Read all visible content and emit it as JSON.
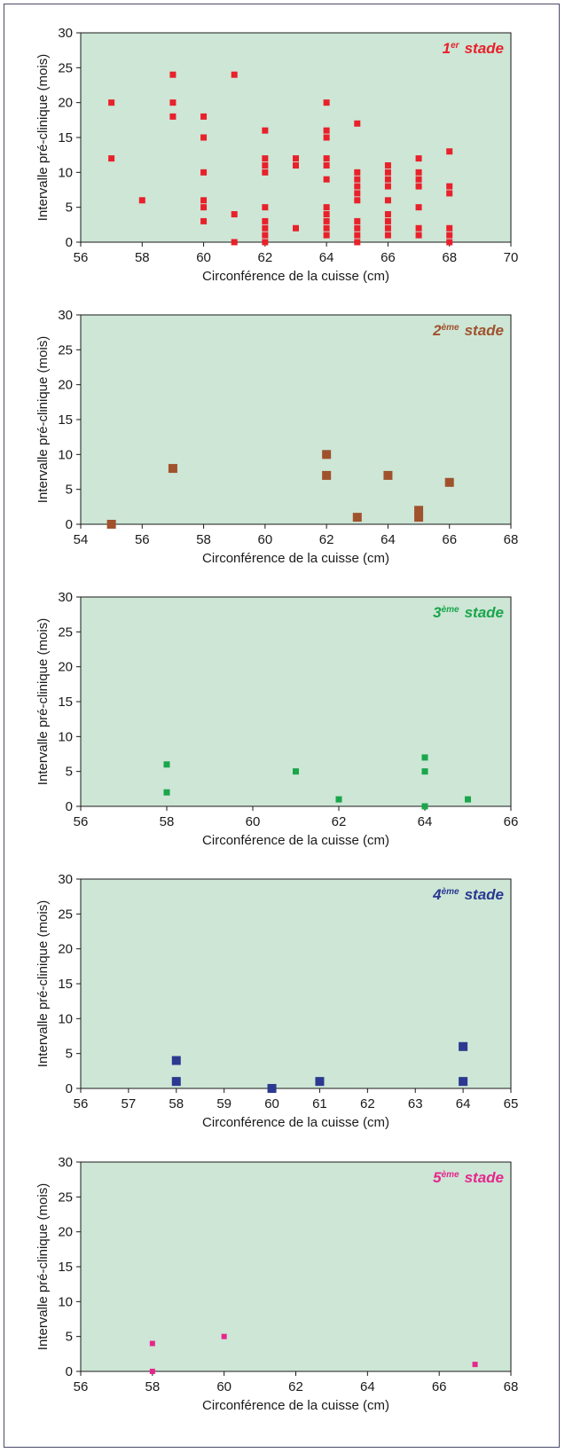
{
  "chart_data": [
    {
      "type": "scatter",
      "stage_sup": "er",
      "stage_word": "stade",
      "stage_num": "1",
      "stage_color": "#e8212b",
      "xlabel": "Circonférence de la cuisse (cm)",
      "ylabel": "Intervalle pré-clinique (mois)",
      "xlim": [
        56,
        70
      ],
      "xticks": [
        56,
        58,
        60,
        62,
        64,
        66,
        68,
        70
      ],
      "ylim": [
        0,
        30
      ],
      "yticks": [
        0,
        5,
        10,
        15,
        20,
        25,
        30
      ],
      "marker": "small",
      "points": [
        [
          57,
          20
        ],
        [
          57,
          12
        ],
        [
          58,
          6
        ],
        [
          59,
          24
        ],
        [
          59,
          20
        ],
        [
          59,
          18
        ],
        [
          60,
          18
        ],
        [
          60,
          15
        ],
        [
          60,
          10
        ],
        [
          60,
          6
        ],
        [
          60,
          5
        ],
        [
          60,
          3
        ],
        [
          61,
          24
        ],
        [
          61,
          4
        ],
        [
          61,
          0
        ],
        [
          62,
          16
        ],
        [
          62,
          12
        ],
        [
          62,
          11
        ],
        [
          62,
          10
        ],
        [
          62,
          5
        ],
        [
          62,
          3
        ],
        [
          62,
          2
        ],
        [
          62,
          1
        ],
        [
          62,
          0
        ],
        [
          63,
          12
        ],
        [
          63,
          11
        ],
        [
          63,
          2
        ],
        [
          64,
          20
        ],
        [
          64,
          16
        ],
        [
          64,
          15
        ],
        [
          64,
          12
        ],
        [
          64,
          11
        ],
        [
          64,
          9
        ],
        [
          64,
          5
        ],
        [
          64,
          4
        ],
        [
          64,
          3
        ],
        [
          64,
          2
        ],
        [
          64,
          1
        ],
        [
          65,
          17
        ],
        [
          65,
          10
        ],
        [
          65,
          9
        ],
        [
          65,
          8
        ],
        [
          65,
          7
        ],
        [
          65,
          6
        ],
        [
          65,
          3
        ],
        [
          65,
          2
        ],
        [
          65,
          1
        ],
        [
          65,
          0
        ],
        [
          66,
          11
        ],
        [
          66,
          10
        ],
        [
          66,
          9
        ],
        [
          66,
          8
        ],
        [
          66,
          6
        ],
        [
          66,
          4
        ],
        [
          66,
          3
        ],
        [
          66,
          2
        ],
        [
          66,
          1
        ],
        [
          67,
          12
        ],
        [
          67,
          10
        ],
        [
          67,
          9
        ],
        [
          67,
          8
        ],
        [
          67,
          5
        ],
        [
          67,
          2
        ],
        [
          67,
          1
        ],
        [
          68,
          13
        ],
        [
          68,
          8
        ],
        [
          68,
          7
        ],
        [
          68,
          2
        ],
        [
          68,
          1
        ],
        [
          68,
          0
        ]
      ]
    },
    {
      "type": "scatter",
      "stage_sup": "ème",
      "stage_word": "stade",
      "stage_num": "2",
      "stage_color": "#a0522d",
      "xlabel": "Circonférence de la cuisse (cm)",
      "ylabel": "Intervalle pré-clinique (mois)",
      "xlim": [
        54,
        68
      ],
      "xticks": [
        54,
        56,
        58,
        60,
        62,
        64,
        66,
        68
      ],
      "ylim": [
        0,
        30
      ],
      "yticks": [
        0,
        5,
        10,
        15,
        20,
        25,
        30
      ],
      "marker": "large",
      "points": [
        [
          55,
          0
        ],
        [
          57,
          8
        ],
        [
          62,
          10
        ],
        [
          62,
          7
        ],
        [
          63,
          1
        ],
        [
          64,
          7
        ],
        [
          65,
          2
        ],
        [
          65,
          1
        ],
        [
          66,
          6
        ]
      ]
    },
    {
      "type": "scatter",
      "stage_sup": "ème",
      "stage_word": "stade",
      "stage_num": "3",
      "stage_color": "#1aa64b",
      "xlabel": "Circonférence de la cuisse (cm)",
      "ylabel": "Intervalle pré-clinique (mois)",
      "xlim": [
        56,
        66
      ],
      "xticks": [
        56,
        58,
        60,
        62,
        64,
        66
      ],
      "ylim": [
        0,
        30
      ],
      "yticks": [
        0,
        5,
        10,
        15,
        20,
        25,
        30
      ],
      "marker": "small",
      "points": [
        [
          58,
          6
        ],
        [
          58,
          2
        ],
        [
          61,
          5
        ],
        [
          62,
          1
        ],
        [
          64,
          7
        ],
        [
          64,
          5
        ],
        [
          64,
          0
        ],
        [
          65,
          1
        ]
      ]
    },
    {
      "type": "scatter",
      "stage_sup": "ème",
      "stage_word": "stade",
      "stage_num": "4",
      "stage_color": "#2b3990",
      "xlabel": "Circonférence de la cuisse (cm)",
      "ylabel": "Intervalle pré-clinique (mois)",
      "xlim": [
        56,
        65
      ],
      "xticks": [
        56,
        57,
        58,
        59,
        60,
        61,
        62,
        63,
        64,
        65
      ],
      "ylim": [
        0,
        30
      ],
      "yticks": [
        0,
        5,
        10,
        15,
        20,
        25,
        30
      ],
      "marker": "large",
      "points": [
        [
          58,
          4
        ],
        [
          58,
          1
        ],
        [
          60,
          0
        ],
        [
          61,
          1
        ],
        [
          64,
          6
        ],
        [
          64,
          1
        ]
      ]
    },
    {
      "type": "scatter",
      "stage_sup": "ème",
      "stage_word": "stade",
      "stage_num": "5",
      "stage_color": "#e6268c",
      "xlabel": "Circonférence de la cuisse (cm)",
      "ylabel": "Intervalle pré-clinique (mois)",
      "xlim": [
        56,
        68
      ],
      "xticks": [
        56,
        58,
        60,
        62,
        64,
        66,
        68
      ],
      "ylim": [
        0,
        30
      ],
      "yticks": [
        0,
        5,
        10,
        15,
        20,
        25,
        30
      ],
      "marker": "tiny",
      "points": [
        [
          58,
          4
        ],
        [
          58,
          0
        ],
        [
          60,
          5
        ],
        [
          67,
          1
        ]
      ]
    }
  ],
  "style": {
    "plot_bg": "#cde6d6"
  }
}
